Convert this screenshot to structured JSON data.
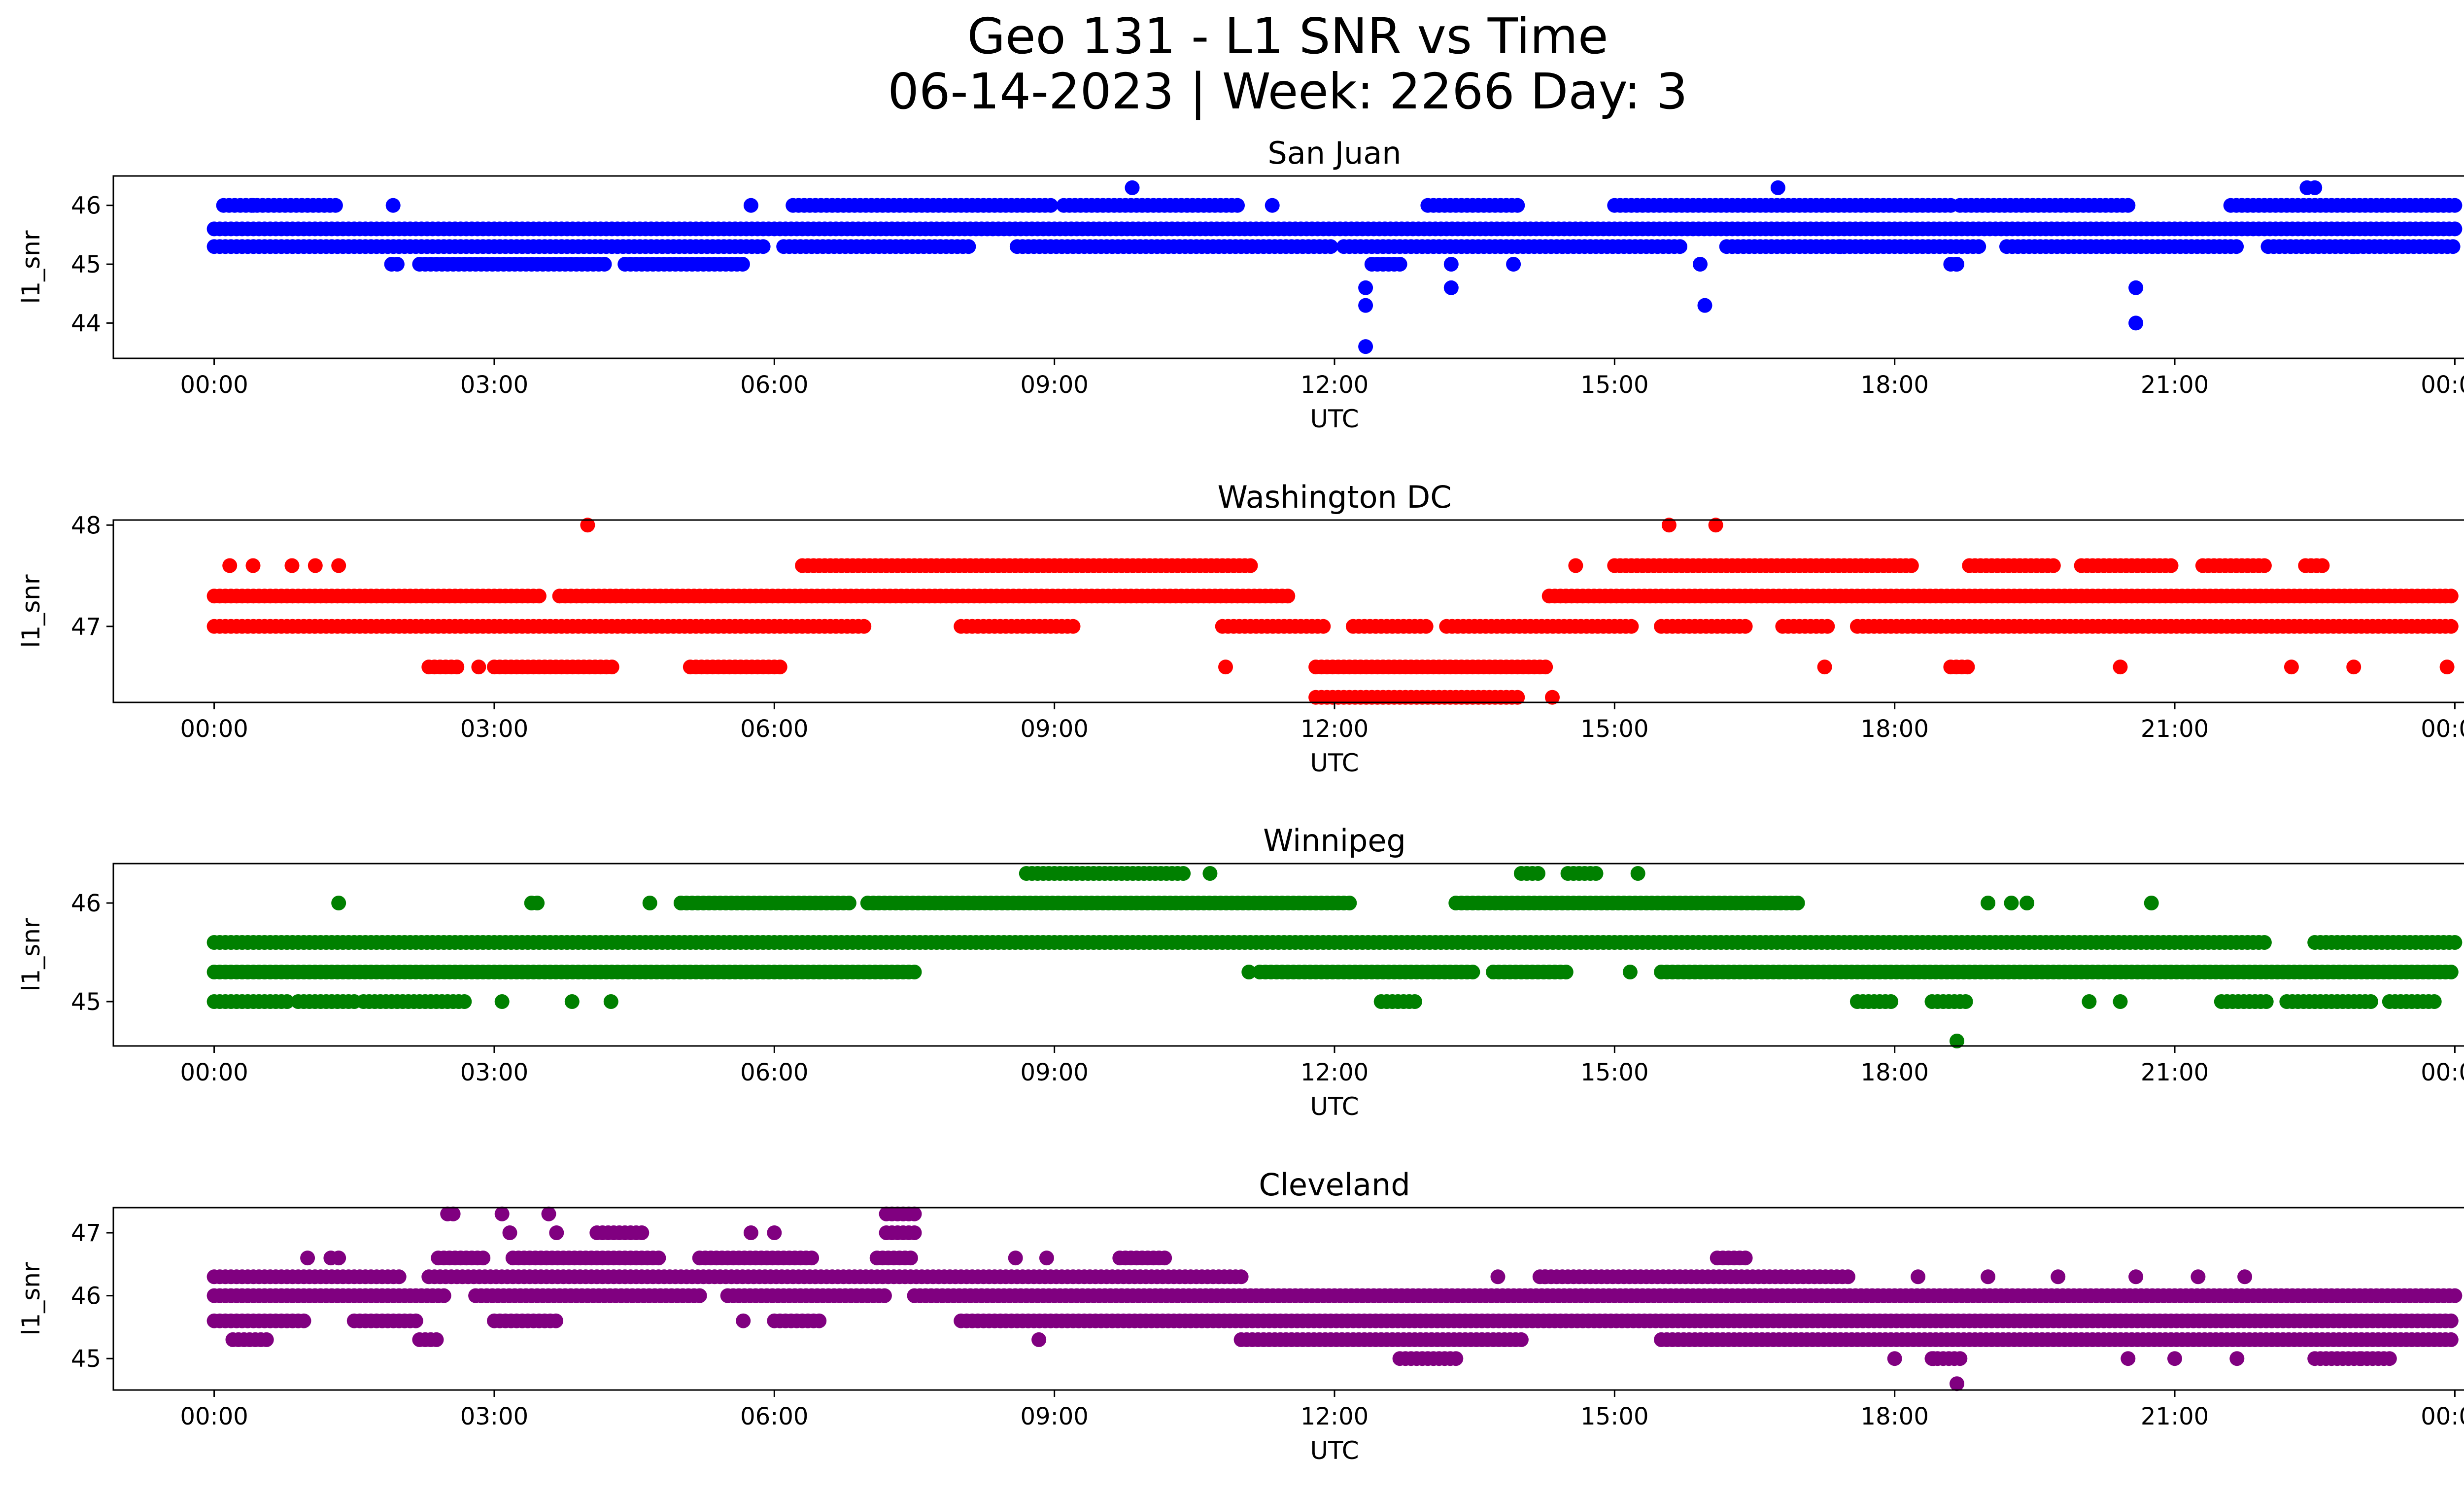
{
  "title_line1": "Geo 131 - L1 SNR vs Time",
  "title_line2": "06-14-2023 | Week: 2266 Day: 3",
  "chart_data": [
    {
      "type": "scatter",
      "title": "San Juan",
      "color": "#0000ff",
      "xlabel": "UTC",
      "ylabel": "l1_snr",
      "xlim": [
        "00:00",
        "24:00"
      ],
      "ylim": [
        43.4,
        46.5
      ],
      "yticks": [
        44,
        45,
        46
      ],
      "xticks": [
        "00:00",
        "03:00",
        "06:00",
        "09:00",
        "12:00",
        "15:00",
        "18:00",
        "21:00",
        "00:00"
      ],
      "grid": false,
      "bands": [
        {
          "y": 45.6,
          "segments": [
            [
              0.0,
              24.0
            ]
          ]
        },
        {
          "y": 45.3,
          "segments": [
            [
              0.0,
              5.9
            ],
            [
              6.1,
              8.1
            ],
            [
              8.6,
              12.0
            ],
            [
              12.1,
              15.7
            ],
            [
              16.2,
              18.9
            ],
            [
              19.2,
              21.7
            ],
            [
              22.0,
              24.0
            ]
          ]
        },
        {
          "y": 46.0,
          "segments": [
            [
              0.1,
              1.35
            ],
            [
              6.2,
              9.0
            ],
            [
              9.1,
              11.0
            ],
            [
              13.0,
              14.0
            ],
            [
              15.0,
              18.6
            ],
            [
              18.7,
              20.5
            ],
            [
              21.6,
              24.0
            ]
          ]
        },
        {
          "y": 45.0,
          "segments": [
            [
              1.9,
              2.0
            ],
            [
              2.2,
              4.2
            ],
            [
              4.4,
              5.7
            ],
            [
              12.4,
              12.7
            ],
            [
              18.6,
              18.7
            ]
          ]
        }
      ],
      "points": [
        [
          "00:25",
          46.0
        ],
        [
          "01:55",
          46.0
        ],
        [
          "05:45",
          46.0
        ],
        [
          "09:50",
          46.3
        ],
        [
          "11:20",
          46.0
        ],
        [
          "16:45",
          46.3
        ],
        [
          "22:30",
          46.3
        ],
        [
          "22:25",
          46.3
        ],
        [
          "12:20",
          44.6
        ],
        [
          "12:20",
          44.3
        ],
        [
          "12:20",
          43.6
        ],
        [
          "13:15",
          45.0
        ],
        [
          "13:15",
          44.6
        ],
        [
          "13:55",
          45.0
        ],
        [
          "15:55",
          45.0
        ],
        [
          "15:58",
          44.3
        ],
        [
          "20:35",
          44.6
        ],
        [
          "20:35",
          44.0
        ],
        [
          "18:40",
          45.0
        ],
        [
          "17:25",
          45.3
        ],
        [
          "22:55",
          45.3
        ]
      ]
    },
    {
      "type": "scatter",
      "title": "Washington DC",
      "color": "#ff0000",
      "xlabel": "UTC",
      "ylabel": "l1_snr",
      "xlim": [
        "00:00",
        "24:00"
      ],
      "ylim": [
        46.25,
        48.05
      ],
      "yticks": [
        47,
        48
      ],
      "xticks": [
        "00:00",
        "03:00",
        "06:00",
        "09:00",
        "12:00",
        "15:00",
        "18:00",
        "21:00",
        "00:00"
      ],
      "grid": false,
      "bands": [
        {
          "y": 47.3,
          "segments": [
            [
              0.0,
              3.5
            ],
            [
              3.7,
              11.5
            ],
            [
              14.3,
              24.0
            ]
          ]
        },
        {
          "y": 47.0,
          "segments": [
            [
              0.0,
              7.0
            ],
            [
              8.0,
              9.2
            ],
            [
              10.8,
              11.9
            ],
            [
              12.2,
              13.0
            ],
            [
              13.2,
              15.2
            ],
            [
              15.5,
              16.4
            ],
            [
              16.8,
              17.3
            ],
            [
              17.6,
              24.0
            ]
          ]
        },
        {
          "y": 47.6,
          "segments": [
            [
              6.3,
              11.1
            ],
            [
              15.0,
              18.2
            ],
            [
              18.8,
              19.7
            ],
            [
              20.0,
              21.0
            ],
            [
              21.3,
              22.0
            ],
            [
              22.4,
              22.6
            ]
          ]
        },
        {
          "y": 46.6,
          "segments": [
            [
              2.3,
              2.6
            ],
            [
              3.0,
              4.3
            ],
            [
              5.1,
              6.1
            ],
            [
              11.8,
              14.3
            ],
            [
              18.6,
              18.8
            ]
          ]
        },
        {
          "y": 46.3,
          "segments": [
            [
              11.8,
              14.0
            ]
          ]
        }
      ],
      "points": [
        [
          "04:00",
          48.0
        ],
        [
          "15:35",
          48.0
        ],
        [
          "16:05",
          48.0
        ],
        [
          "00:10",
          47.6
        ],
        [
          "00:25",
          47.6
        ],
        [
          "00:50",
          47.6
        ],
        [
          "01:05",
          47.6
        ],
        [
          "01:20",
          47.6
        ],
        [
          "14:35",
          47.6
        ],
        [
          "02:50",
          46.6
        ],
        [
          "10:50",
          46.6
        ],
        [
          "14:20",
          46.3
        ],
        [
          "17:15",
          46.6
        ],
        [
          "20:25",
          46.6
        ],
        [
          "22:15",
          46.6
        ],
        [
          "22:55",
          46.6
        ],
        [
          "23:55",
          46.6
        ]
      ]
    },
    {
      "type": "scatter",
      "title": "Winnipeg",
      "color": "#008000",
      "xlabel": "UTC",
      "ylabel": "l1_snr",
      "xlim": [
        "00:00",
        "24:00"
      ],
      "ylim": [
        44.55,
        46.4
      ],
      "yticks": [
        45,
        46
      ],
      "xticks": [
        "00:00",
        "03:00",
        "06:00",
        "09:00",
        "12:00",
        "15:00",
        "18:00",
        "21:00",
        "00:00"
      ],
      "grid": false,
      "bands": [
        {
          "y": 45.6,
          "segments": [
            [
              0.0,
              22.0
            ],
            [
              22.5,
              24.0
            ]
          ]
        },
        {
          "y": 45.3,
          "segments": [
            [
              0.0,
              7.5
            ],
            [
              11.2,
              13.5
            ],
            [
              13.7,
              14.5
            ],
            [
              15.5,
              24.0
            ]
          ]
        },
        {
          "y": 46.0,
          "segments": [
            [
              3.4,
              3.5
            ],
            [
              5.0,
              6.8
            ],
            [
              7.0,
              12.2
            ],
            [
              13.3,
              17.0
            ]
          ]
        },
        {
          "y": 45.0,
          "segments": [
            [
              0.0,
              0.8
            ],
            [
              0.9,
              1.5
            ],
            [
              1.6,
              2.7
            ],
            [
              12.5,
              12.9
            ],
            [
              17.6,
              18.0
            ],
            [
              18.4,
              18.8
            ],
            [
              21.5,
              22.0
            ],
            [
              22.2,
              23.1
            ],
            [
              23.3,
              23.8
            ]
          ]
        },
        {
          "y": 46.3,
          "segments": [
            [
              8.7,
              10.4
            ],
            [
              14.0,
              14.2
            ],
            [
              14.5,
              14.8
            ]
          ]
        }
      ],
      "points": [
        [
          "01:20",
          46.0
        ],
        [
          "04:40",
          46.0
        ],
        [
          "05:00",
          46.0
        ],
        [
          "03:05",
          45.0
        ],
        [
          "03:50",
          45.0
        ],
        [
          "04:15",
          45.0
        ],
        [
          "10:40",
          46.3
        ],
        [
          "15:15",
          46.3
        ],
        [
          "19:00",
          46.0
        ],
        [
          "19:15",
          46.0
        ],
        [
          "19:25",
          46.0
        ],
        [
          "20:45",
          46.0
        ],
        [
          "18:40",
          44.6
        ],
        [
          "11:05",
          45.3
        ],
        [
          "15:10",
          45.3
        ],
        [
          "20:05",
          45.0
        ],
        [
          "20:25",
          45.0
        ]
      ]
    },
    {
      "type": "scatter",
      "title": "Cleveland",
      "color": "#800080",
      "xlabel": "UTC",
      "ylabel": "l1_snr",
      "xlim": [
        "00:00",
        "24:00"
      ],
      "ylim": [
        44.5,
        47.4
      ],
      "yticks": [
        45,
        46,
        47
      ],
      "xticks": [
        "00:00",
        "03:00",
        "06:00",
        "09:00",
        "12:00",
        "15:00",
        "18:00",
        "21:00",
        "00:00"
      ],
      "grid": false,
      "bands": [
        {
          "y": 46.3,
          "segments": [
            [
              0.0,
              2.0
            ],
            [
              2.3,
              11.0
            ],
            [
              14.2,
              17.5
            ]
          ]
        },
        {
          "y": 46.0,
          "segments": [
            [
              0.0,
              2.5
            ],
            [
              2.8,
              5.2
            ],
            [
              5.5,
              7.2
            ],
            [
              7.5,
              24.0
            ]
          ]
        },
        {
          "y": 45.6,
          "segments": [
            [
              0.0,
              1.0
            ],
            [
              1.5,
              2.2
            ],
            [
              3.0,
              3.7
            ],
            [
              6.0,
              6.5
            ],
            [
              8.0,
              24.0
            ]
          ]
        },
        {
          "y": 45.3,
          "segments": [
            [
              0.2,
              0.6
            ],
            [
              2.2,
              2.4
            ],
            [
              11.0,
              14.0
            ],
            [
              15.5,
              24.0
            ]
          ]
        },
        {
          "y": 45.0,
          "segments": [
            [
              12.7,
              13.3
            ],
            [
              18.4,
              18.7
            ],
            [
              22.5,
              23.0
            ],
            [
              23.0,
              23.3
            ]
          ]
        },
        {
          "y": 46.6,
          "segments": [
            [
              2.4,
              2.9
            ],
            [
              3.2,
              4.8
            ],
            [
              5.2,
              6.4
            ],
            [
              7.1,
              7.5
            ],
            [
              9.7,
              10.2
            ],
            [
              16.1,
              16.4
            ]
          ]
        },
        {
          "y": 47.0,
          "segments": [
            [
              4.1,
              4.6
            ],
            [
              7.2,
              7.5
            ]
          ]
        },
        {
          "y": 47.3,
          "segments": [
            [
              2.5,
              2.6
            ],
            [
              7.2,
              7.5
            ]
          ]
        }
      ],
      "points": [
        [
          "03:05",
          47.3
        ],
        [
          "03:35",
          47.3
        ],
        [
          "03:10",
          47.0
        ],
        [
          "03:40",
          47.0
        ],
        [
          "05:45",
          47.0
        ],
        [
          "06:00",
          47.0
        ],
        [
          "01:00",
          46.6
        ],
        [
          "01:15",
          46.6
        ],
        [
          "01:20",
          46.6
        ],
        [
          "05:40",
          45.6
        ],
        [
          "08:50",
          45.3
        ],
        [
          "18:40",
          44.6
        ],
        [
          "18:00",
          45.0
        ],
        [
          "18:25",
          45.0
        ],
        [
          "20:30",
          45.0
        ],
        [
          "21:00",
          45.0
        ],
        [
          "21:40",
          45.0
        ],
        [
          "13:45",
          46.3
        ],
        [
          "14:15",
          46.3
        ],
        [
          "18:15",
          46.3
        ],
        [
          "19:00",
          46.3
        ],
        [
          "19:45",
          46.3
        ],
        [
          "20:35",
          46.3
        ],
        [
          "21:15",
          46.3
        ],
        [
          "21:45",
          46.3
        ],
        [
          "08:55",
          46.6
        ],
        [
          "08:35",
          46.6
        ]
      ]
    }
  ]
}
